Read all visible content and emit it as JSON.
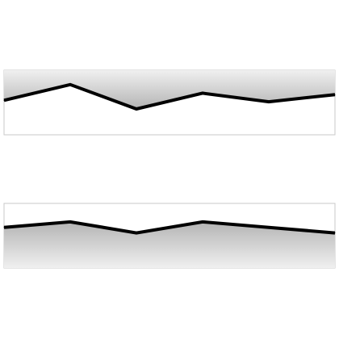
{
  "chart_data": [
    {
      "type": "area",
      "fill_from": "top",
      "x": [
        0,
        1,
        2,
        3,
        4,
        5
      ],
      "values": [
        0.79,
        0.9,
        0.73,
        0.84,
        0.78,
        0.83
      ],
      "ylim": [
        0.55,
        1.0
      ],
      "grid": false,
      "colors": {
        "line": "#000000",
        "fill_dark": "#b4b4b4",
        "fill_light": "#f0f0f0",
        "border": "#c8c8c8"
      }
    },
    {
      "type": "area",
      "fill_from": "bottom",
      "x": [
        0,
        1,
        2,
        3,
        4,
        5
      ],
      "values": [
        0.88,
        1.0,
        0.76,
        1.0,
        0.88,
        0.76
      ],
      "ylim": [
        0.0,
        1.4
      ],
      "grid": false,
      "colors": {
        "line": "#000000",
        "fill_dark": "#b4b4b4",
        "fill_light": "#f0f0f0",
        "border": "#c8c8c8"
      }
    }
  ]
}
